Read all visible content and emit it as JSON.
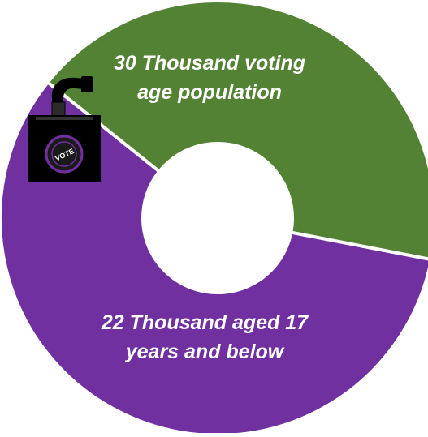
{
  "chart_data": {
    "type": "pie",
    "donut": true,
    "categories": [
      "30 Thousand voting age population",
      "22 Thousand aged 17 years and below"
    ],
    "values": [
      30,
      22
    ],
    "colors": [
      "#7030A0",
      "#548235"
    ],
    "labels": [
      [
        "30 Thousand voting",
        "age population"
      ],
      [
        "22 Thousand aged 17",
        "years and below"
      ]
    ],
    "legend": "none"
  },
  "icons": {
    "ballot_box": {
      "name": "ballot-box-icon",
      "stamp_text": "VOTE"
    }
  }
}
